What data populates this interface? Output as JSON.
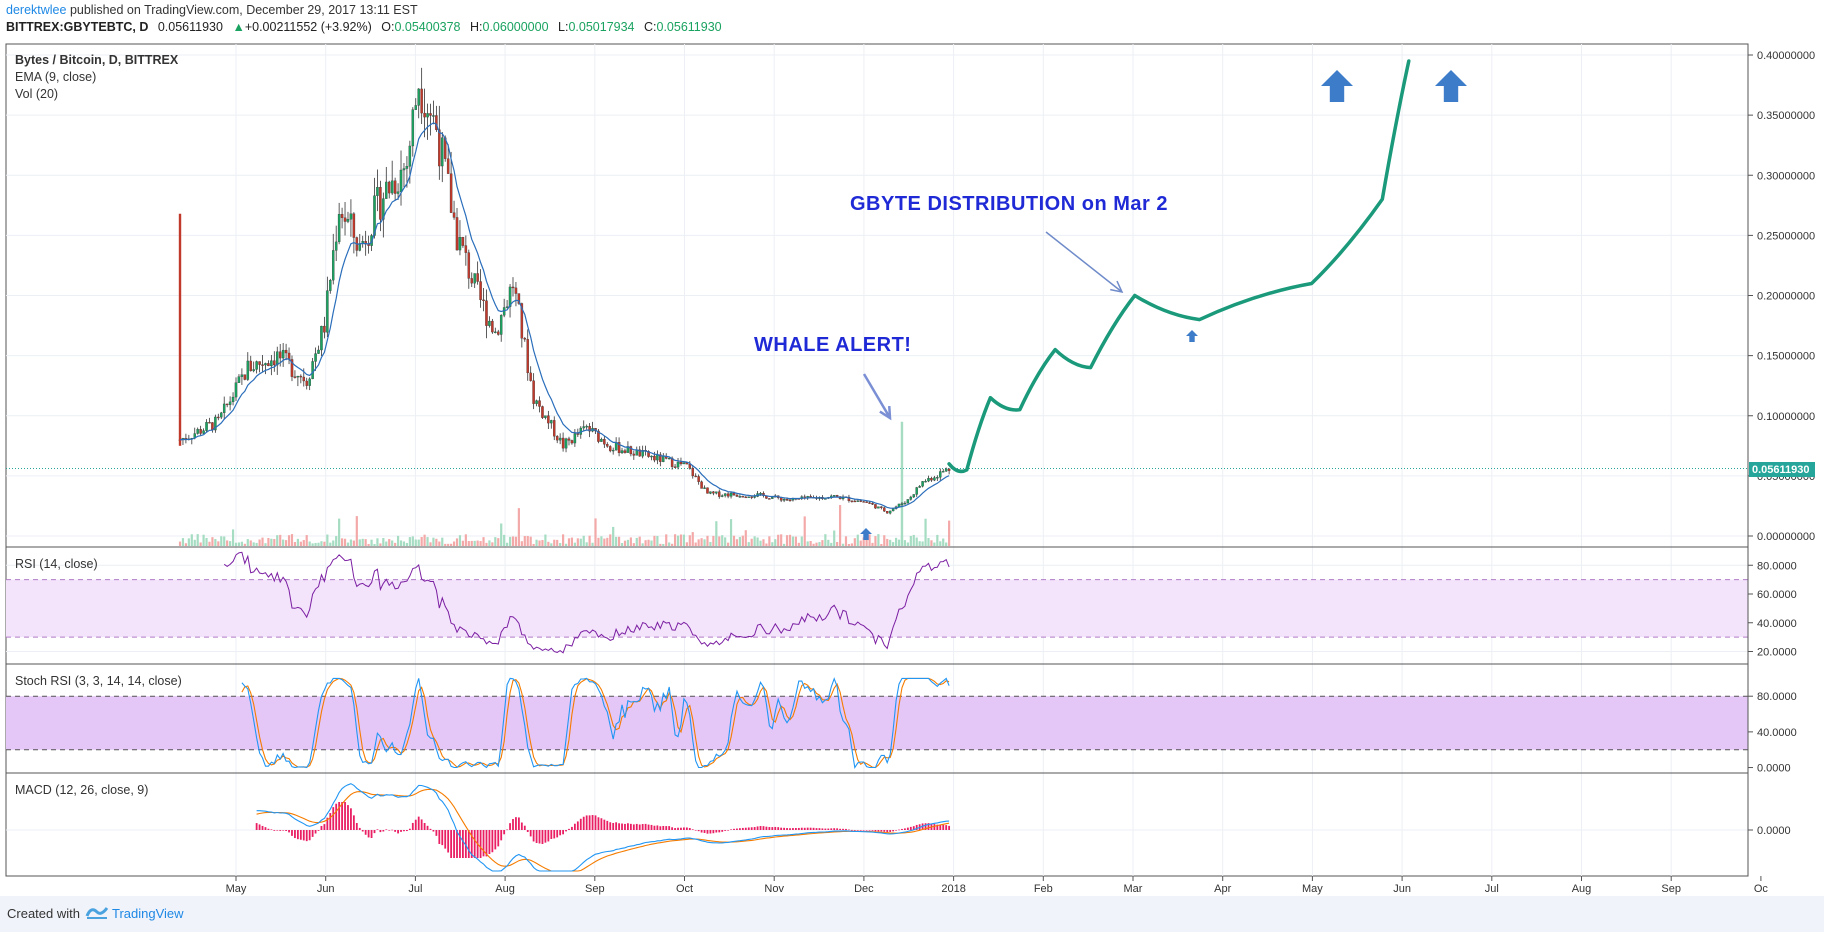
{
  "header": {
    "author": "derektwlee",
    "published": "published on TradingView.com, December 29, 2017 13:11 EST",
    "symbol": "BITTREX:GBYTEBTC, D",
    "last": "0.05611930",
    "change_arrow": "▲",
    "change": "+0.00211552 (+3.92%)",
    "o_label": "O:",
    "o_val": "0.05400378",
    "h_label": "H:",
    "h_val": "0.06000000",
    "l_label": "L:",
    "l_val": "0.05017934",
    "c_label": "C:",
    "c_val": "0.05611930"
  },
  "legend": {
    "title": "Bytes / Bitcoin, D, BITTREX",
    "ema": "EMA (9, close)",
    "vol": "Vol (20)",
    "rsi": "RSI (14, close)",
    "stoch": "Stoch RSI (3, 3, 14, 14, close)",
    "macd": "MACD (12, 26, close, 9)"
  },
  "annotations": {
    "whale": "WHALE ALERT!",
    "distribution": "GBYTE DISTRIBUTION on Mar 2"
  },
  "footer": {
    "created": "Created with",
    "brand": "TradingView"
  },
  "colors": {
    "up": "#1aa260",
    "down": "#c0392b",
    "ema": "#2a6ebb",
    "projection": "#1a9a7a",
    "annotation_text": "#1f2ad6",
    "rsi_line": "#7b1fa2",
    "rsi_band": "#f3e3fb",
    "stoch_band": "#e4c6f7",
    "stoch_k": "#2196f3",
    "stoch_d": "#f57c00",
    "macd_line": "#2196f3",
    "signal_line": "#f57c00",
    "histogram": "#e91e63",
    "price_label_bg": "#26a69a"
  },
  "chart_data": [
    {
      "type": "candlestick",
      "x_ticks": [
        "May",
        "Jun",
        "Jul",
        "Aug",
        "Sep",
        "Oct",
        "Nov",
        "Dec",
        "2018",
        "Feb",
        "Mar",
        "Apr",
        "May",
        "Jun",
        "Jul",
        "Aug",
        "Sep",
        "Oc"
      ],
      "y_ticks": [
        "0.40000000",
        "0.35000000",
        "0.30000000",
        "0.25000000",
        "0.20000000",
        "0.15000000",
        "0.10000000",
        "0.05000000",
        "0.00000000"
      ],
      "ylim": [
        0,
        0.41
      ],
      "current_price_label": "0.05611930",
      "current_price": 0.0561193,
      "price_trace": [
        {
          "date": "2017-04-12",
          "close": 0.08
        },
        {
          "date": "2017-04-25",
          "close": 0.095
        },
        {
          "date": "2017-05-05",
          "close": 0.14
        },
        {
          "date": "2017-05-15",
          "close": 0.15
        },
        {
          "date": "2017-05-25",
          "close": 0.13
        },
        {
          "date": "2017-05-31",
          "close": 0.175
        },
        {
          "date": "2017-06-05",
          "close": 0.275
        },
        {
          "date": "2017-06-12",
          "close": 0.24
        },
        {
          "date": "2017-06-20",
          "close": 0.285
        },
        {
          "date": "2017-06-28",
          "close": 0.31
        },
        {
          "date": "2017-07-02",
          "close": 0.38
        },
        {
          "date": "2017-07-08",
          "close": 0.34
        },
        {
          "date": "2017-07-15",
          "close": 0.25
        },
        {
          "date": "2017-07-22",
          "close": 0.2
        },
        {
          "date": "2017-07-28",
          "close": 0.17
        },
        {
          "date": "2017-08-03",
          "close": 0.21
        },
        {
          "date": "2017-08-10",
          "close": 0.115
        },
        {
          "date": "2017-08-20",
          "close": 0.075
        },
        {
          "date": "2017-08-28",
          "close": 0.09
        },
        {
          "date": "2017-09-05",
          "close": 0.075
        },
        {
          "date": "2017-09-20",
          "close": 0.065
        },
        {
          "date": "2017-10-01",
          "close": 0.058
        },
        {
          "date": "2017-10-08",
          "close": 0.035
        },
        {
          "date": "2017-10-25",
          "close": 0.034
        },
        {
          "date": "2017-11-05",
          "close": 0.03
        },
        {
          "date": "2017-11-20",
          "close": 0.033
        },
        {
          "date": "2017-12-01",
          "close": 0.028
        },
        {
          "date": "2017-12-08",
          "close": 0.02
        },
        {
          "date": "2017-12-15",
          "close": 0.03
        },
        {
          "date": "2017-12-20",
          "close": 0.045
        },
        {
          "date": "2017-12-29",
          "close": 0.0561
        }
      ],
      "projection": [
        {
          "date": "2017-12-29",
          "value": 0.06
        },
        {
          "date": "2018-01-04",
          "value": 0.055
        },
        {
          "date": "2018-01-12",
          "value": 0.115
        },
        {
          "date": "2018-01-22",
          "value": 0.105
        },
        {
          "date": "2018-02-03",
          "value": 0.155
        },
        {
          "date": "2018-02-15",
          "value": 0.14
        },
        {
          "date": "2018-03-02",
          "value": 0.2
        },
        {
          "date": "2018-03-24",
          "value": 0.18
        },
        {
          "date": "2018-05-01",
          "value": 0.21
        },
        {
          "date": "2018-05-25",
          "value": 0.28
        },
        {
          "date": "2018-06-03",
          "value": 0.395
        }
      ]
    },
    {
      "type": "line",
      "name": "RSI (14, close)",
      "y_ticks": [
        "80.0000",
        "60.0000",
        "40.0000",
        "20.0000"
      ],
      "ylim": [
        12,
        92
      ],
      "band": [
        30,
        70
      ]
    },
    {
      "type": "line",
      "name": "Stoch RSI (3, 3, 14, 14, close)",
      "y_ticks": [
        "80.0000",
        "40.0000",
        "0.0000"
      ],
      "ylim": [
        -5,
        115
      ],
      "band": [
        20,
        80
      ]
    },
    {
      "type": "line",
      "name": "MACD (12, 26, close, 9)",
      "y_ticks": [
        "0.0000"
      ]
    }
  ]
}
